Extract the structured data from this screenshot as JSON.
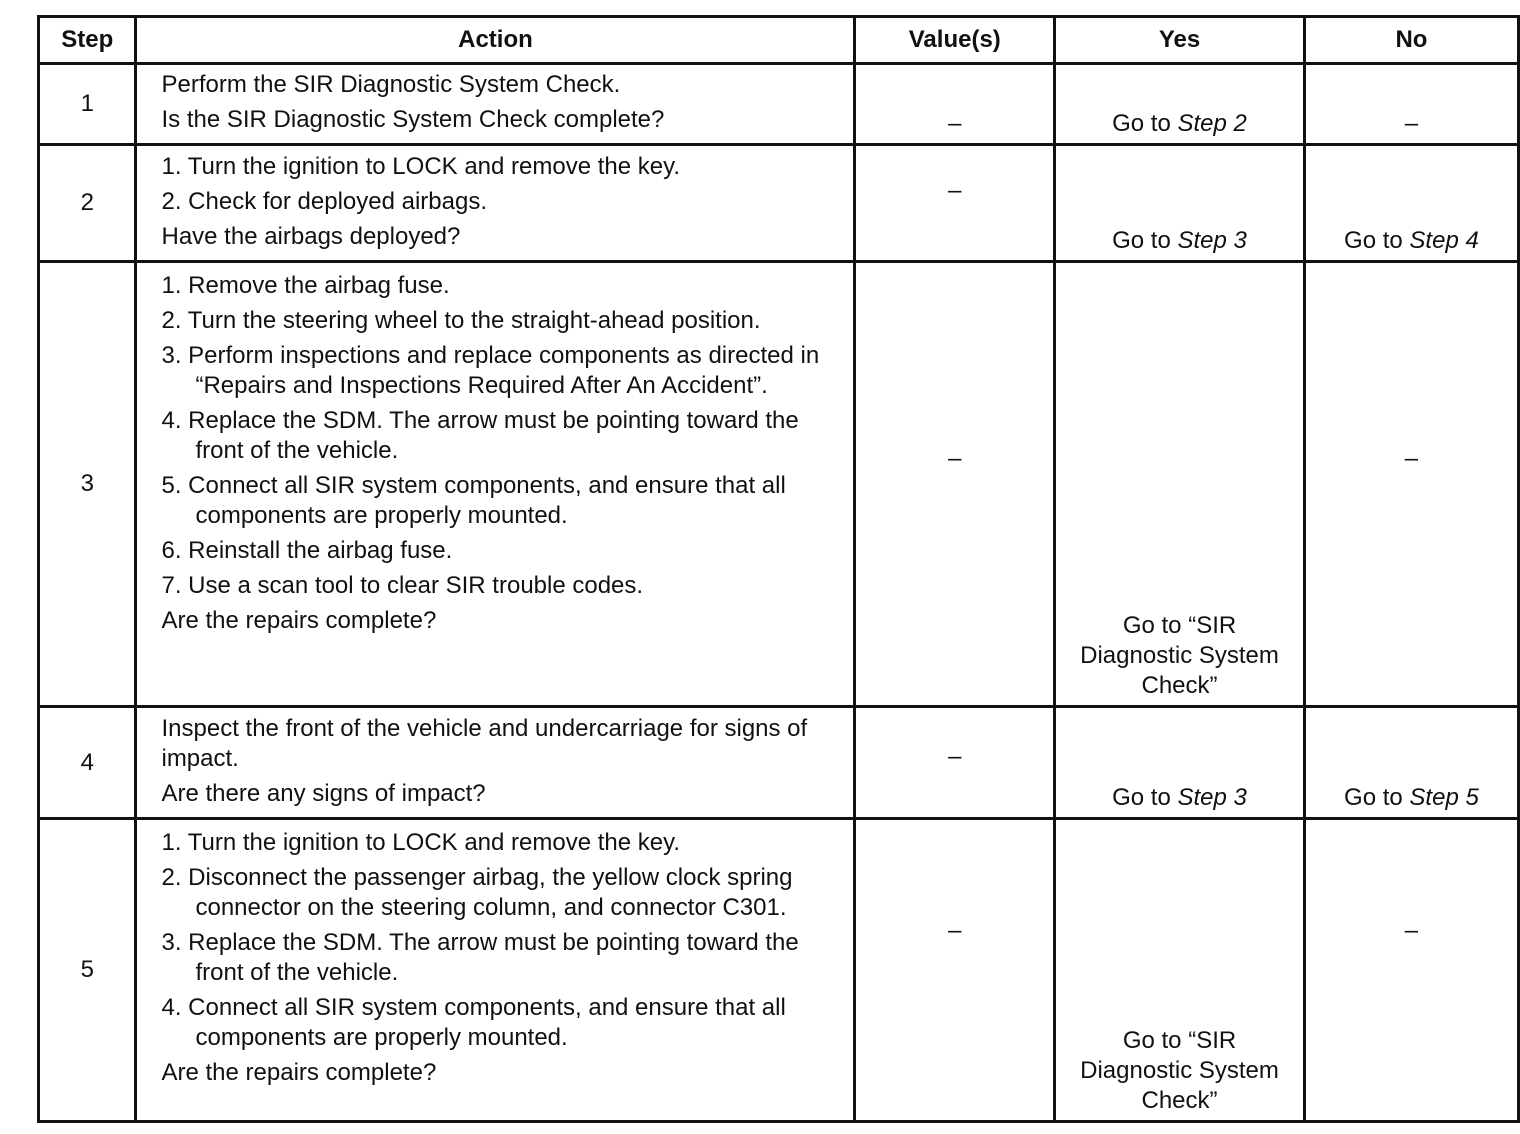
{
  "headers": [
    "Step",
    "Action",
    "Value(s)",
    "Yes",
    "No"
  ],
  "rows": [
    {
      "step": "1",
      "lines": [
        "Perform the SIR Diagnostic System Check."
      ],
      "items": [],
      "question": "Is the SIR Diagnostic System Check complete?",
      "value": "–",
      "yes_prefix": "Go to",
      "yes_ref": "Step 2",
      "no": "–"
    },
    {
      "step": "2",
      "items": [
        "1. Turn the ignition to LOCK and remove the key.",
        "2. Check for deployed airbags."
      ],
      "question": "Have the airbags deployed?",
      "value": "–",
      "yes_prefix": "Go to",
      "yes_ref": "Step 3",
      "no_prefix": "Go to",
      "no_ref": "Step 4"
    },
    {
      "step": "3",
      "items": [
        "1. Remove the airbag fuse.",
        "2. Turn the steering wheel to the straight-ahead position.",
        "3. Perform inspections and replace components as directed in “Repairs and Inspections Required After An Accident”.",
        "4. Replace the SDM. The arrow must be pointing toward the front of the vehicle.",
        "5. Connect all SIR system components, and ensure that all components are properly mounted.",
        "6. Reinstall the airbag fuse.",
        "7. Use a scan tool to clear SIR trouble codes."
      ],
      "question": "Are the repairs complete?",
      "value": "–",
      "yes": "Go to “SIR Diagnostic System Check”",
      "no": "–"
    },
    {
      "step": "4",
      "lines": [
        "Inspect the front of the vehicle and undercarriage for signs of impact."
      ],
      "question": "Are there any signs of impact?",
      "value": "–",
      "yes_prefix": "Go to",
      "yes_ref": "Step 3",
      "no_prefix": "Go to",
      "no_ref": "Step 5"
    },
    {
      "step": "5",
      "items": [
        "1. Turn the ignition to LOCK and remove the key.",
        "2. Disconnect the passenger airbag, the yellow clock spring connector on the steering column, and connector C301.",
        "3. Replace the SDM. The arrow must be pointing toward the front of the vehicle.",
        "4. Connect all SIR system components, and ensure that all components are properly mounted."
      ],
      "question": "Are the repairs complete?",
      "value": "–",
      "yes": "Go to “SIR Diagnostic System Check”",
      "no": "–"
    }
  ]
}
